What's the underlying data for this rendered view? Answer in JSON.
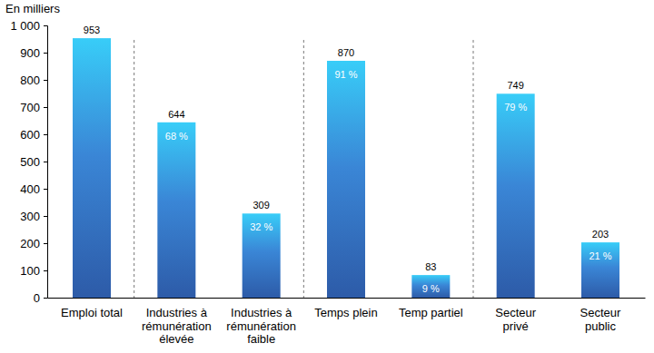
{
  "chart_data": {
    "type": "bar",
    "y_label": "En milliers",
    "categories": [
      "Emploi total",
      "Industries à rémunération élevée",
      "Industries à rémunération faible",
      "Temps plein",
      "Temp partiel",
      "Secteur privé",
      "Secteur public"
    ],
    "values": [
      953,
      644,
      309,
      870,
      83,
      749,
      203
    ],
    "share_labels": [
      null,
      "68 %",
      "32 %",
      "91 %",
      "9 %",
      "79 %",
      "21 %"
    ],
    "ylim": [
      0,
      1000
    ],
    "yticks": [
      0,
      100,
      200,
      300,
      400,
      500,
      600,
      700,
      800,
      900,
      {
        "value": 1000,
        "label": "1 000"
      }
    ],
    "grid": false,
    "data_labels": true
  }
}
